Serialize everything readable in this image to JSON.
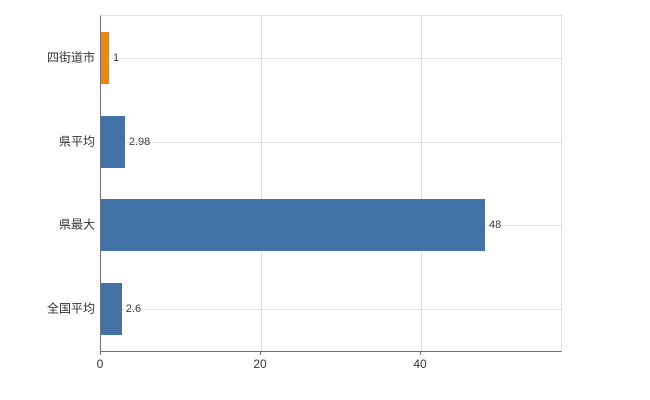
{
  "chart_data": {
    "type": "bar",
    "orientation": "horizontal",
    "title": "",
    "xlabel": "",
    "ylabel": "",
    "categories": [
      "四街道市",
      "県平均",
      "県最大",
      "全国平均"
    ],
    "values": [
      1,
      2.98,
      48,
      2.6
    ],
    "value_labels": [
      "1",
      "2.98",
      "48",
      "2.6"
    ],
    "series_colors": [
      "#e8861c",
      "#4372a8",
      "#4372a8",
      "#4372a8"
    ],
    "xticks": [
      0,
      20,
      40
    ],
    "xtick_labels": [
      "0",
      "20",
      "40"
    ],
    "xlim": [
      0,
      57.5
    ],
    "grid": "light vertical gridlines at ticks, dotted horizontal guide per bar",
    "legend": "none",
    "background": "#ffffff"
  }
}
